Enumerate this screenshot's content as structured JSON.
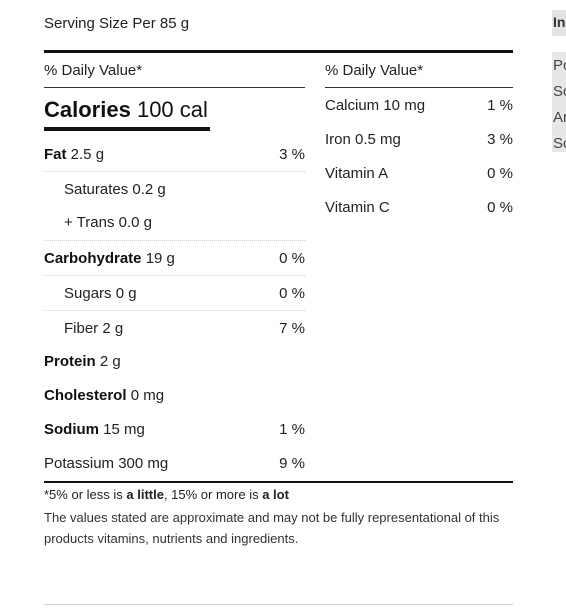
{
  "serving_size": "Serving Size Per 85 g",
  "daily_value_header": "% Daily Value*",
  "calories": {
    "label": "Calories",
    "value": "100 cal"
  },
  "left_rows": [
    {
      "label": "Fat",
      "value": "2.5 g",
      "dv": "3 %"
    },
    {
      "label": "Saturates",
      "value": "0.2 g",
      "dv": ""
    },
    {
      "label": "+ Trans",
      "value": "0.0 g",
      "dv": ""
    },
    {
      "label": "Carbohydrate",
      "value": "19 g",
      "dv": "0 %"
    },
    {
      "label": "Sugars",
      "value": "0 g",
      "dv": "0 %"
    },
    {
      "label": "Fiber",
      "value": "2 g",
      "dv": "7 %"
    },
    {
      "label": "Protein",
      "value": "2 g",
      "dv": ""
    },
    {
      "label": "Cholesterol",
      "value": "0 mg",
      "dv": ""
    },
    {
      "label": "Sodium",
      "value": "15 mg",
      "dv": "1 %"
    },
    {
      "label": "Potassium",
      "value": "300 mg",
      "dv": "9 %"
    }
  ],
  "right_rows": [
    {
      "label": "Calcium 10 mg",
      "dv": "1 %"
    },
    {
      "label": "Iron 0.5 mg",
      "dv": "3 %"
    },
    {
      "label": "Vitamin A",
      "dv": "0 %"
    },
    {
      "label": "Vitamin C",
      "dv": "0 %"
    }
  ],
  "footnote": {
    "prefix": "*5% or less is ",
    "little": "a little",
    "mid": ", 15% or more is ",
    "lot": "a lot"
  },
  "disclaimer": "The values stated are approximate and may not be fully representational of this products vitamins, nutrients and ingredients.",
  "side": {
    "heading": "In",
    "lines": [
      "Po",
      "Sc",
      "Ar",
      "Sc"
    ]
  }
}
